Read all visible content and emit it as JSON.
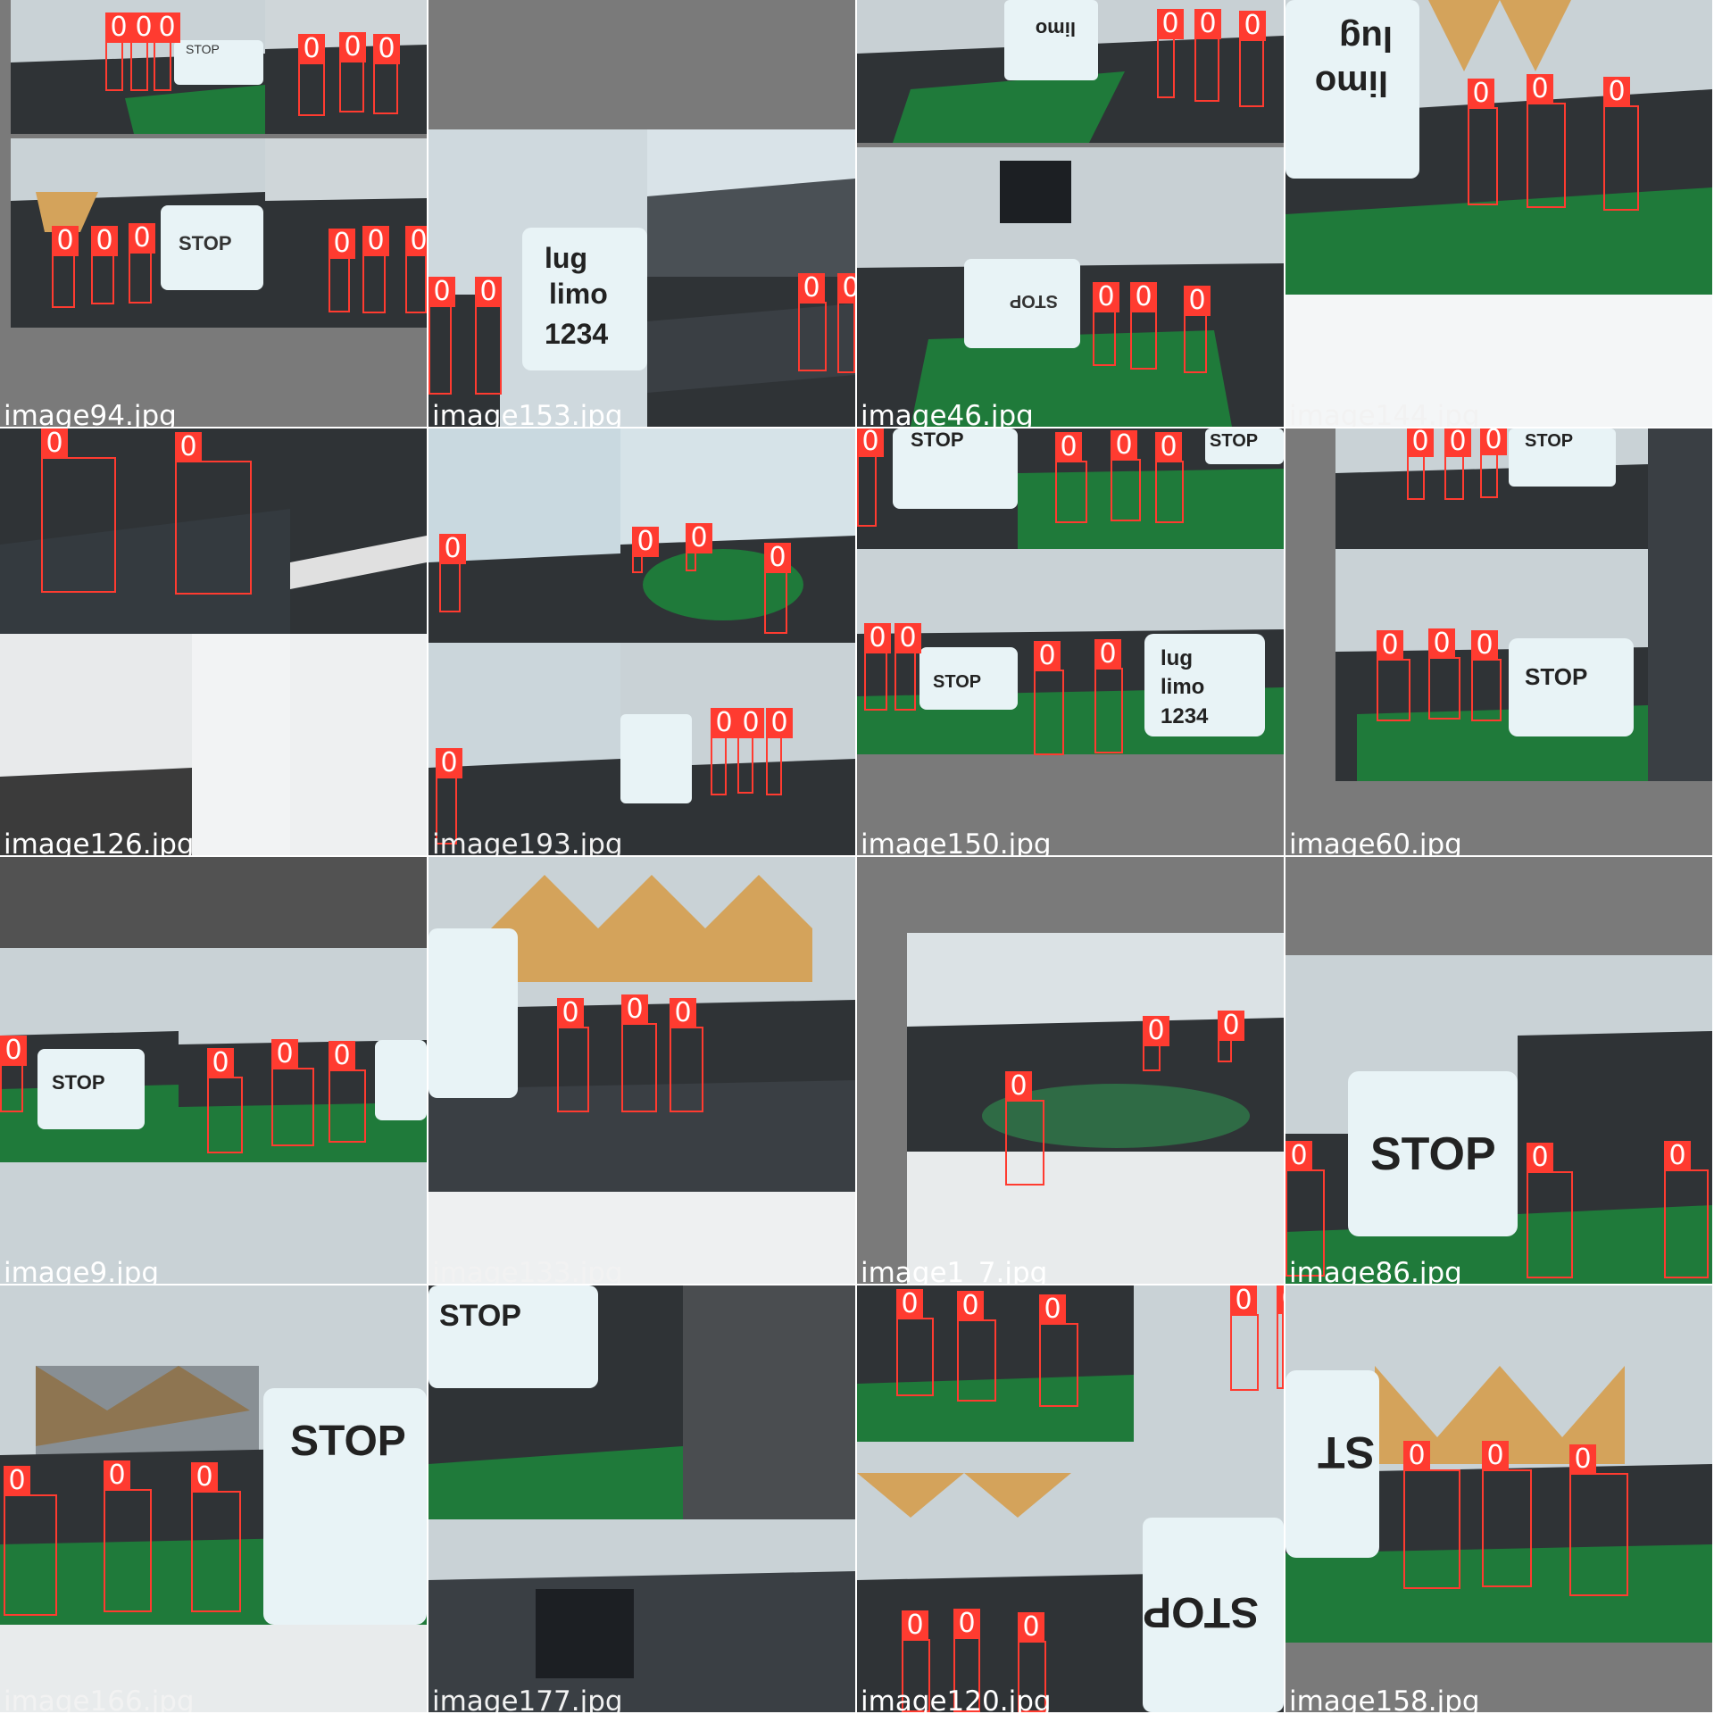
{
  "grid": {
    "tiles": [
      {
        "filename": "image94.jpg",
        "boxes": [
          {
            "label": "0"
          },
          {
            "label": "0"
          },
          {
            "label": "0"
          },
          {
            "label": "0"
          },
          {
            "label": "0"
          },
          {
            "label": "0"
          },
          {
            "label": "0"
          },
          {
            "label": "0"
          },
          {
            "label": "0"
          },
          {
            "label": "0"
          },
          {
            "label": "0"
          },
          {
            "label": "0"
          }
        ]
      },
      {
        "filename": "image153.jpg",
        "boxes": [
          {
            "label": "0"
          },
          {
            "label": "0"
          },
          {
            "label": "0"
          },
          {
            "label": "0"
          }
        ]
      },
      {
        "filename": "image46.jpg",
        "boxes": [
          {
            "label": "0"
          },
          {
            "label": "0"
          },
          {
            "label": "0"
          },
          {
            "label": "0"
          },
          {
            "label": "0"
          },
          {
            "label": "0"
          }
        ]
      },
      {
        "filename": "image144.jpg",
        "boxes": [
          {
            "label": "0"
          },
          {
            "label": "0"
          },
          {
            "label": "0"
          }
        ]
      },
      {
        "filename": "image126.jpg",
        "boxes": [
          {
            "label": "0"
          },
          {
            "label": "0"
          }
        ]
      },
      {
        "filename": "image193.jpg",
        "boxes": [
          {
            "label": "0"
          },
          {
            "label": "0"
          },
          {
            "label": "0"
          },
          {
            "label": "0"
          },
          {
            "label": "0"
          },
          {
            "label": "0"
          },
          {
            "label": "0"
          },
          {
            "label": "0"
          }
        ]
      },
      {
        "filename": "image150.jpg",
        "boxes": [
          {
            "label": "0"
          },
          {
            "label": "0"
          },
          {
            "label": "0"
          },
          {
            "label": "0"
          },
          {
            "label": "0"
          },
          {
            "label": "0"
          },
          {
            "label": "0"
          },
          {
            "label": "0"
          }
        ]
      },
      {
        "filename": "image60.jpg",
        "boxes": [
          {
            "label": "0"
          },
          {
            "label": "0"
          },
          {
            "label": "0"
          },
          {
            "label": "0"
          },
          {
            "label": "0"
          },
          {
            "label": "0"
          }
        ]
      },
      {
        "filename": "image9.jpg",
        "boxes": [
          {
            "label": "0"
          },
          {
            "label": "0"
          },
          {
            "label": "0"
          },
          {
            "label": "0"
          }
        ]
      },
      {
        "filename": "image133.jpg",
        "boxes": [
          {
            "label": "0"
          },
          {
            "label": "0"
          },
          {
            "label": "0"
          }
        ]
      },
      {
        "filename": "image1_7.jpg",
        "boxes": [
          {
            "label": "0"
          },
          {
            "label": "0"
          },
          {
            "label": "0"
          }
        ]
      },
      {
        "filename": "image86.jpg",
        "boxes": [
          {
            "label": "0"
          },
          {
            "label": "0"
          },
          {
            "label": "0"
          }
        ]
      },
      {
        "filename": "image166.jpg",
        "boxes": [
          {
            "label": "0"
          },
          {
            "label": "0"
          },
          {
            "label": "0"
          }
        ]
      },
      {
        "filename": "image177.jpg",
        "boxes": []
      },
      {
        "filename": "image120.jpg",
        "boxes": [
          {
            "label": "0"
          },
          {
            "label": "0"
          },
          {
            "label": "0"
          },
          {
            "label": "0"
          },
          {
            "label": "0"
          },
          {
            "label": "0"
          },
          {
            "label": "0"
          },
          {
            "label": "0"
          }
        ]
      },
      {
        "filename": "image158.jpg",
        "boxes": [
          {
            "label": "0"
          },
          {
            "label": "0"
          },
          {
            "label": "0"
          }
        ]
      }
    ]
  },
  "colors": {
    "box": "#ff3b30",
    "pad_gray": "#7a7a7a",
    "track_dark": "#2f3336",
    "track_green": "#1f7a3a",
    "wall": "#c9d2d6",
    "sign": "#e8f3f6"
  },
  "signs": {
    "stop": "STOP",
    "lug": "lug",
    "limo": "limo",
    "num": "1234"
  }
}
